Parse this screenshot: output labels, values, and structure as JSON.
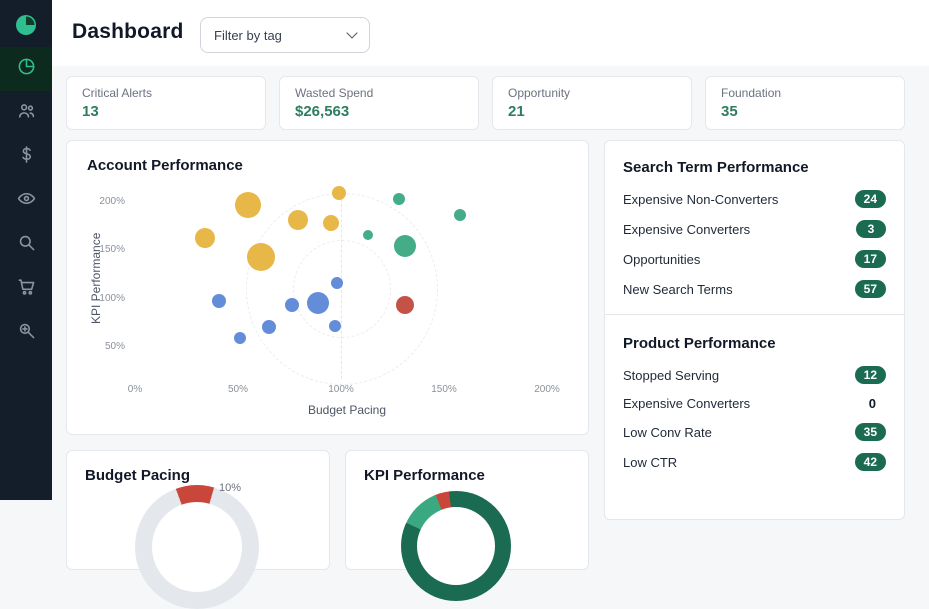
{
  "app": {
    "title": "Dashboard"
  },
  "header": {
    "filter_label": "Filter by tag"
  },
  "sidebar": {
    "logo": "logo-icon",
    "items": [
      {
        "icon": "pie-chart-icon",
        "active": true
      },
      {
        "icon": "users-icon",
        "active": false
      },
      {
        "icon": "dollar-icon",
        "active": false
      },
      {
        "icon": "eye-icon",
        "active": false
      },
      {
        "icon": "search-icon",
        "active": false
      },
      {
        "icon": "cart-icon",
        "active": false
      },
      {
        "icon": "search-audit-icon",
        "active": false
      }
    ]
  },
  "kpi_cards": [
    {
      "label": "Critical Alerts",
      "value": "13"
    },
    {
      "label": "Wasted Spend",
      "value": "$26,563"
    },
    {
      "label": "Opportunity",
      "value": "21"
    },
    {
      "label": "Foundation",
      "value": "35"
    }
  ],
  "panels": {
    "account_performance": {
      "title": "Account Performance"
    },
    "search_term_performance": {
      "title": "Search Term Performance",
      "items": [
        {
          "label": "Expensive Non-Converters",
          "value": "24",
          "badge": true
        },
        {
          "label": "Expensive Converters",
          "value": "3",
          "badge": true
        },
        {
          "label": "Opportunities",
          "value": "17",
          "badge": true
        },
        {
          "label": "New Search Terms",
          "value": "57",
          "badge": true
        }
      ]
    },
    "product_performance": {
      "title": "Product Performance",
      "items": [
        {
          "label": "Stopped Serving",
          "value": "12",
          "badge": true
        },
        {
          "label": "Expensive Converters",
          "value": "0",
          "badge": false
        },
        {
          "label": "Low Conv Rate",
          "value": "35",
          "badge": true
        },
        {
          "label": "Low CTR",
          "value": "42",
          "badge": true
        }
      ]
    },
    "budget_pacing": {
      "title": "Budget Pacing",
      "visible_label": "10%"
    },
    "kpi_performance": {
      "title": "KPI Performance"
    }
  },
  "chart_data": [
    {
      "type": "scatter",
      "title": "Account Performance",
      "xlabel": "Budget Pacing",
      "ylabel": "KPI Performance",
      "x_ticks": [
        "0%",
        "50%",
        "100%",
        "150%",
        "200%"
      ],
      "y_ticks": [
        "200%",
        "150%",
        "100%",
        "50%"
      ],
      "xlim": [
        0,
        200
      ],
      "ylim": [
        15,
        215
      ],
      "grid": "dashed vertical line at x=100% with concentric dashed circles",
      "points": [
        {
          "x": 55,
          "y": 196,
          "r": 13,
          "c": "yellow"
        },
        {
          "x": 34,
          "y": 162,
          "r": 10,
          "c": "yellow"
        },
        {
          "x": 61,
          "y": 142,
          "r": 14,
          "c": "yellow"
        },
        {
          "x": 79,
          "y": 180,
          "r": 10,
          "c": "yellow"
        },
        {
          "x": 95,
          "y": 177,
          "r": 8,
          "c": "yellow"
        },
        {
          "x": 99,
          "y": 208,
          "r": 7,
          "c": "yellow"
        },
        {
          "x": 128,
          "y": 202,
          "r": 6,
          "c": "green"
        },
        {
          "x": 158,
          "y": 185,
          "r": 6,
          "c": "green"
        },
        {
          "x": 113,
          "y": 165,
          "r": 5,
          "c": "green"
        },
        {
          "x": 131,
          "y": 153,
          "r": 11,
          "c": "green"
        },
        {
          "x": 41,
          "y": 97,
          "r": 7,
          "c": "blue"
        },
        {
          "x": 76,
          "y": 92,
          "r": 7,
          "c": "blue"
        },
        {
          "x": 89,
          "y": 94,
          "r": 11,
          "c": "blue"
        },
        {
          "x": 98,
          "y": 115,
          "r": 6,
          "c": "blue"
        },
        {
          "x": 51,
          "y": 58,
          "r": 6,
          "c": "blue"
        },
        {
          "x": 65,
          "y": 70,
          "r": 7,
          "c": "blue"
        },
        {
          "x": 97,
          "y": 71,
          "r": 6,
          "c": "blue"
        },
        {
          "x": 131,
          "y": 92,
          "r": 9,
          "c": "red"
        }
      ]
    },
    {
      "type": "pie",
      "title": "Budget Pacing",
      "partially_visible": true,
      "segments": [
        {
          "value": 10,
          "color": "#c9473a",
          "label": "10%"
        },
        {
          "value": 90,
          "color": "#e4e8ec",
          "label": ""
        }
      ]
    },
    {
      "type": "pie",
      "title": "KPI Performance",
      "partially_visible": true,
      "segments": [
        {
          "value": 12,
          "color": "#3aa981",
          "label": ""
        },
        {
          "value": 4,
          "color": "#c9473a",
          "label": ""
        },
        {
          "value": 84,
          "color": "#1a6b52",
          "label": ""
        }
      ]
    }
  ],
  "colors": {
    "accent_green": "#2e7d5e",
    "badge_bg": "#1b6b52",
    "sidebar_bg": "#131e2a",
    "sidebar_active": "#2fbf8f",
    "bubble_yellow": "#e6b33d",
    "bubble_blue": "#5b86d7",
    "bubble_green": "#3aa981",
    "bubble_red": "#c2493d"
  }
}
